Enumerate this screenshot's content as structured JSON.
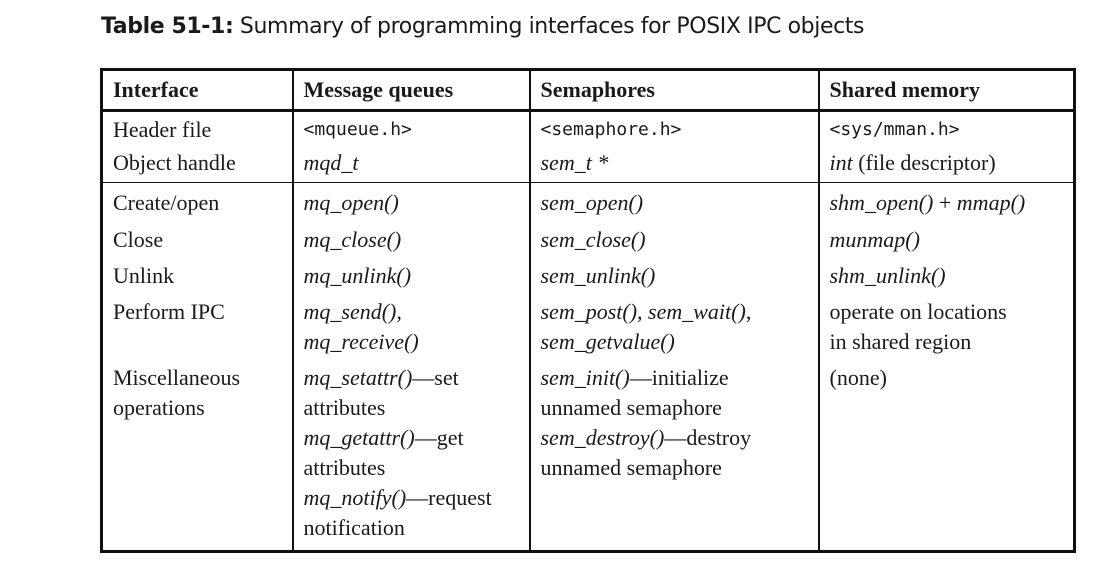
{
  "caption": {
    "label": "Table 51-1:",
    "text": " Summary of programming interfaces for POSIX IPC objects"
  },
  "headers": [
    "Interface",
    "Message queues",
    "Semaphores",
    "Shared memory"
  ],
  "rows": {
    "header_file": {
      "label": "Header file",
      "mq": "<mqueue.h>",
      "sem": "<semaphore.h>",
      "shm": "<sys/mman.h>"
    },
    "object_handle": {
      "label": "Object handle",
      "mq": "mqd_t",
      "sem": "sem_t *",
      "shm_fn": "int",
      "shm_rest": " (file descriptor)"
    },
    "create_open": {
      "label": "Create/open",
      "mq": "mq_open()",
      "sem": "sem_open()",
      "shm_fn1": "shm_open()",
      "shm_plus": " + ",
      "shm_fn2": "mmap()"
    },
    "close": {
      "label": "Close",
      "mq": "mq_close()",
      "sem": "sem_close()",
      "shm": "munmap()"
    },
    "unlink": {
      "label": "Unlink",
      "mq": "mq_unlink()",
      "sem": "sem_unlink()",
      "shm": "shm_unlink()"
    },
    "perform_ipc": {
      "label": "Perform IPC",
      "mq1": "mq_send(),",
      "mq2": "mq_receive()",
      "sem1a": "sem_post()",
      "sem1b": ", ",
      "sem1c": "sem_wait()",
      "sem1d": ",",
      "sem2": "sem_getvalue()",
      "shm1": "operate on locations",
      "shm2": "in shared region"
    },
    "misc": {
      "label1": "Miscellaneous",
      "label2": "operations",
      "mq_a_fn": "mq_setattr()",
      "mq_a_txt": "—set",
      "mq_a_line2": "attributes",
      "mq_b_fn": "mq_getattr()",
      "mq_b_txt": "—get",
      "mq_b_line2": "attributes",
      "mq_c_fn": "mq_notify()",
      "mq_c_txt": "—request",
      "mq_c_line2": "notification",
      "sem_a_fn": "sem_init()",
      "sem_a_txt": "—initialize",
      "sem_a_line2": "unnamed semaphore",
      "sem_b_fn": "sem_destroy()",
      "sem_b_txt": "—destroy",
      "sem_b_line2": "unnamed semaphore",
      "shm": "(none)"
    }
  }
}
